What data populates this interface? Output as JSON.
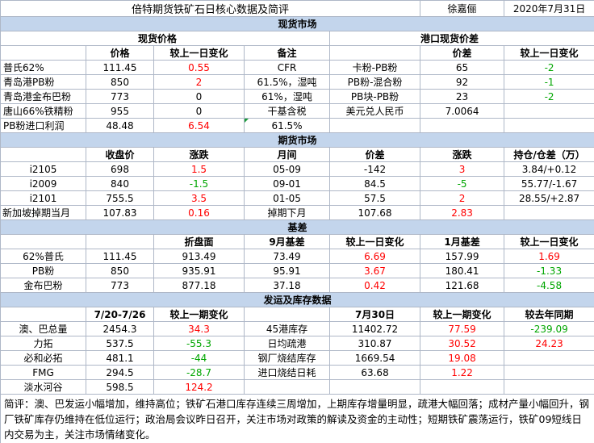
{
  "header": {
    "title": "倍特期货铁矿石日核心数据及简评",
    "author": "徐嘉俪",
    "date": "2020年7月31日"
  },
  "spot": {
    "section_title": "现货市场",
    "price_title": "现货价格",
    "port_title": "港口现货价差",
    "columns": [
      "价格",
      "较上一日变化",
      "备注",
      "价差",
      "较上一日变化"
    ],
    "rows": [
      {
        "name": "普氏62%",
        "price": "111.45",
        "change": "0.55",
        "change_dir": "up",
        "note": "CFR",
        "spread_name": "卡粉-PB粉",
        "spread": "65",
        "spread_change": "-2",
        "spread_dir": "down"
      },
      {
        "name": "青岛港PB粉",
        "price": "850",
        "change": "2",
        "change_dir": "up",
        "note": "61.5%，湿吨",
        "spread_name": "PB粉-混合粉",
        "spread": "92",
        "spread_change": "-1",
        "spread_dir": "down"
      },
      {
        "name": "青岛港金布巴粉",
        "price": "773",
        "change": "0",
        "change_dir": "flat",
        "note": "61%，湿吨",
        "spread_name": "PB块-PB粉",
        "spread": "23",
        "spread_change": "-2",
        "spread_dir": "down"
      },
      {
        "name": "唐山66%铁精粉",
        "price": "955",
        "change": "0",
        "change_dir": "flat",
        "note": "干基含税",
        "spread_name": "美元兑人民币",
        "spread": "7.0064",
        "spread_change": "",
        "spread_dir": "flat"
      }
    ],
    "profit": {
      "name": "PB粉进口利润",
      "price": "48.48",
      "change": "6.54",
      "change_dir": "up",
      "note": "61.5%"
    }
  },
  "futures": {
    "section_title": "期货市场",
    "columns": [
      "收盘价",
      "涨跌",
      "月间",
      "价差",
      "涨跌",
      "持仓/仓差（万）"
    ],
    "rows": [
      {
        "contract": "i2105",
        "close": "698",
        "change": "1.5",
        "change_dir": "up",
        "spread_name": "05-09",
        "spread": "-142",
        "spread_change": "3",
        "spread_dir": "up",
        "oi": "3.84/+0.12"
      },
      {
        "contract": "i2009",
        "close": "840",
        "change": "-1.5",
        "change_dir": "down",
        "spread_name": "09-01",
        "spread": "84.5",
        "spread_change": "-5",
        "spread_dir": "down",
        "oi": "55.77/-1.67"
      },
      {
        "contract": "i2101",
        "close": "755.5",
        "change": "3.5",
        "change_dir": "up",
        "spread_name": "01-05",
        "spread": "57.5",
        "spread_change": "2",
        "spread_dir": "up",
        "oi": "28.55/+2.87"
      },
      {
        "contract": "新加坡掉期当月",
        "close": "107.83",
        "change": "0.16",
        "change_dir": "up",
        "spread_name": "掉期下月",
        "spread": "107.68",
        "spread_change": "2.83",
        "spread_dir": "up",
        "oi": ""
      }
    ]
  },
  "basis": {
    "section_title": "基差",
    "columns": [
      "折盘面",
      "9月基差",
      "较上一日变化",
      "1月基差",
      "较上一日变化"
    ],
    "rows": [
      {
        "name": "62%普氏",
        "price": "111.45",
        "converted": "913.49",
        "basis9": "73.49",
        "change9": "6.69",
        "dir9": "up",
        "basis1": "157.99",
        "change1": "1.69",
        "dir1": "up"
      },
      {
        "name": "PB粉",
        "price": "850",
        "converted": "935.91",
        "basis9": "95.91",
        "change9": "3.67",
        "dir9": "up",
        "basis1": "180.41",
        "change1": "-1.33",
        "dir1": "down"
      },
      {
        "name": "金布巴粉",
        "price": "773",
        "converted": "877.18",
        "basis9": "37.18",
        "change9": "0.42",
        "dir9": "up",
        "basis1": "121.68",
        "change1": "-4.58",
        "dir1": "down"
      }
    ]
  },
  "shipping": {
    "section_title": "发运及库存数据",
    "left_period": "7/20-7/26",
    "left_change": "较上一期变化",
    "right_period": "7月30日",
    "right_change": "较上一期变化",
    "yoy": "较去年同期",
    "rows": [
      {
        "name": "澳、巴总量",
        "value": "2454.3",
        "change": "34.3",
        "change_dir": "up",
        "item": "45港库存",
        "item_value": "11402.72",
        "item_change": "77.59",
        "item_dir": "up",
        "yoy": "-239.09",
        "yoy_dir": "down"
      },
      {
        "name": "力拓",
        "value": "537.5",
        "change": "-55.3",
        "change_dir": "down",
        "item": "日均疏港",
        "item_value": "310.87",
        "item_change": "30.52",
        "item_dir": "up",
        "yoy": "24.23",
        "yoy_dir": "up"
      },
      {
        "name": "必和必拓",
        "value": "481.1",
        "change": "-44",
        "change_dir": "down",
        "item": "钢厂烧结库存",
        "item_value": "1669.54",
        "item_change": "19.08",
        "item_dir": "up",
        "yoy": "",
        "yoy_dir": "flat"
      },
      {
        "name": "FMG",
        "value": "294.5",
        "change": "-28.7",
        "change_dir": "down",
        "item": "进口烧结日耗",
        "item_value": "63.68",
        "item_change": "1.22",
        "item_dir": "up",
        "yoy": "",
        "yoy_dir": "flat"
      },
      {
        "name": "淡水河谷",
        "value": "598.5",
        "change": "124.2",
        "change_dir": "up",
        "item": "",
        "item_value": "",
        "item_change": "",
        "item_dir": "flat",
        "yoy": "",
        "yoy_dir": "flat"
      }
    ]
  },
  "comment": "简评：澳、巴发运小幅增加，维持高位；铁矿石港口库存连续三周增加，上期库存增量明显，疏港大幅回落；成材产量小幅回升，钢厂铁矿库存仍维持在低位运行；政治局会议昨日召开，关注市场对政策的解读及资金的主动性；短期铁矿震荡运行，铁矿09短线日内交易为主，关注市场情绪变化。",
  "colors": {
    "up": "#ff0000",
    "down": "#00a600",
    "band": "#c3d5ec",
    "grid": "#aeb7c7"
  }
}
